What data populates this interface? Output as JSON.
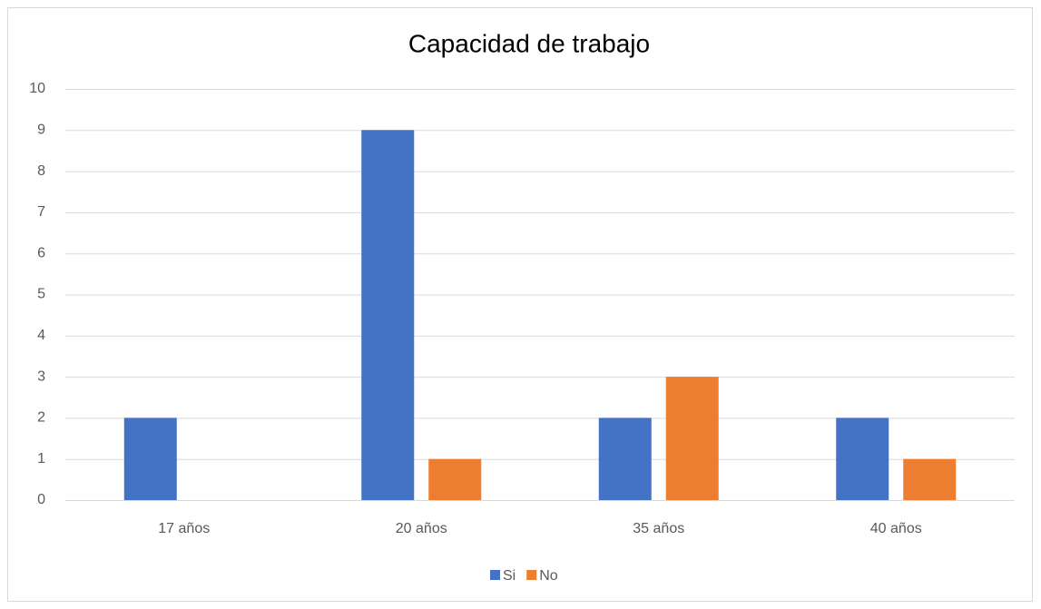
{
  "chart_data": {
    "type": "bar",
    "title": "Capacidad de trabajo",
    "categories": [
      "17 años",
      "20 años",
      "35 años",
      "40 años"
    ],
    "series": [
      {
        "name": "Si",
        "color": "#4472c4",
        "values": [
          2,
          9,
          2,
          2
        ]
      },
      {
        "name": "No",
        "color": "#ed7d31",
        "values": [
          0,
          1,
          3,
          1
        ]
      }
    ],
    "ylim": [
      0,
      10
    ],
    "yticks": [
      0,
      1,
      2,
      3,
      4,
      5,
      6,
      7,
      8,
      9,
      10
    ],
    "grid": true,
    "legend": "bottom"
  }
}
